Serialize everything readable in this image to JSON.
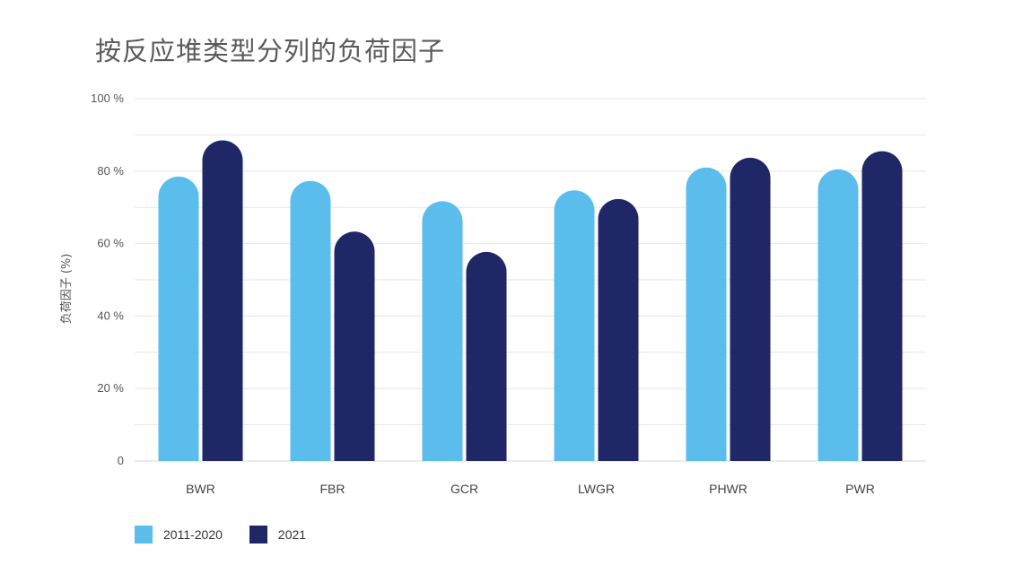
{
  "chart_data": {
    "type": "bar",
    "title": "按反应堆类型分列的负荷因子",
    "ylabel": "负荷因子 (%)",
    "xlabel": "",
    "ylim": [
      0,
      100
    ],
    "yticks": [
      0,
      20,
      40,
      60,
      80,
      100
    ],
    "ytick_labels": [
      "0",
      "20 %",
      "40 %",
      "60 %",
      "80 %",
      "100 %"
    ],
    "categories": [
      "BWR",
      "FBR",
      "GCR",
      "LWGR",
      "PHWR",
      "PWR"
    ],
    "series": [
      {
        "name": "2011-2020",
        "color": "#5bbdeb",
        "values": [
          78.5,
          77.3,
          71.7,
          74.7,
          81,
          80.5
        ]
      },
      {
        "name": "2021",
        "color": "#1f2767",
        "values": [
          88.5,
          63.3,
          57.7,
          72.3,
          83.7,
          85.5
        ]
      }
    ],
    "grid": true,
    "legend_position": "bottom-left"
  }
}
